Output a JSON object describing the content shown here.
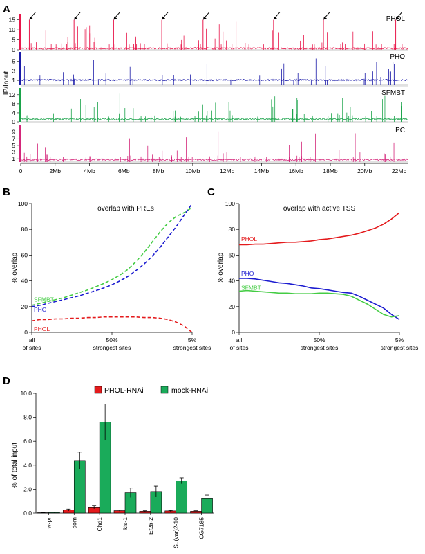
{
  "panel_labels": {
    "A": "A",
    "B": "B",
    "C": "C",
    "D": "D"
  },
  "colors": {
    "phol": "#e8174b",
    "pho": "#1a1aa8",
    "sfmbt": "#1aa34a",
    "pc": "#d4267a",
    "red_line": "#e41a1c",
    "blue_line": "#1c1cd0",
    "green_line": "#44cc44",
    "bar_red": "#e41a1c",
    "bar_green": "#1aab5a"
  },
  "chart_data": [
    {
      "id": "A",
      "type": "area",
      "ylabel": "IP/Input",
      "x_ticks": [
        "0",
        "2Mb",
        "4Mb",
        "6Mb",
        "8Mb",
        "10Mb",
        "12Mb",
        "14Mb",
        "16Mb",
        "18Mb",
        "20Mb",
        "22Mb"
      ],
      "xlim": [
        0,
        22.5
      ],
      "tracks": [
        {
          "name": "PHOL",
          "y_ticks": [
            "15",
            "10",
            "5",
            "0"
          ],
          "ylim": [
            0,
            18
          ],
          "arrows_at_mb": [
            0.5,
            3.1,
            5.4,
            8.2,
            10.6,
            14.7,
            17.6,
            21.8
          ]
        },
        {
          "name": "PHO",
          "y_ticks": [
            "5",
            "3",
            "1"
          ],
          "ylim": [
            0,
            7
          ]
        },
        {
          "name": "SFMBT",
          "y_ticks": [
            "12",
            "8",
            "4",
            "0"
          ],
          "ylim": [
            0,
            15
          ]
        },
        {
          "name": "PC",
          "y_ticks": [
            "9",
            "7",
            "5",
            "3",
            "1"
          ],
          "ylim": [
            0,
            11
          ]
        }
      ]
    },
    {
      "id": "B",
      "type": "line",
      "title": "overlap with PREs",
      "ylabel": "% overlap",
      "ylim": [
        0,
        100
      ],
      "y_ticks": [
        0,
        20,
        40,
        60,
        80,
        100
      ],
      "x_tick_labels": [
        [
          "all",
          "of sites"
        ],
        [
          "50%",
          "strongest sites"
        ],
        [
          "5%",
          "strongest sites"
        ]
      ],
      "x": [
        0,
        5,
        10,
        15,
        20,
        25,
        30,
        35,
        40,
        45,
        50,
        55,
        60,
        65,
        70,
        75,
        80,
        85,
        90,
        95,
        100
      ],
      "series": [
        {
          "name": "SFMBT",
          "values": [
            21,
            22.5,
            24,
            25.5,
            27,
            29,
            31,
            33,
            35.5,
            38,
            41,
            44.5,
            49,
            55,
            62,
            70,
            78,
            85,
            90,
            93,
            97
          ]
        },
        {
          "name": "PHO",
          "values": [
            20,
            21,
            22.5,
            24,
            25.5,
            27,
            28.5,
            30.5,
            32.5,
            34.5,
            37,
            40,
            43.5,
            48,
            53,
            59,
            66,
            74,
            82,
            91,
            100
          ]
        },
        {
          "name": "PHOL",
          "values": [
            9,
            10,
            10,
            10.5,
            10.5,
            11,
            11,
            11.5,
            11.5,
            12,
            12,
            12,
            12,
            12,
            11.5,
            11.5,
            11,
            10,
            8,
            5,
            0
          ]
        }
      ]
    },
    {
      "id": "C",
      "type": "line",
      "title": "overlap with active TSS",
      "ylabel": "% overlap",
      "ylim": [
        0,
        100
      ],
      "y_ticks": [
        0,
        20,
        40,
        60,
        80,
        100
      ],
      "x_tick_labels": [
        [
          "all",
          "of sites"
        ],
        [
          "50%",
          "strongest sites"
        ],
        [
          "5%",
          "strongest sites"
        ]
      ],
      "x": [
        0,
        5,
        10,
        15,
        20,
        25,
        30,
        35,
        40,
        45,
        50,
        55,
        60,
        65,
        70,
        75,
        80,
        85,
        90,
        95,
        100
      ],
      "series": [
        {
          "name": "PHOL",
          "values": [
            68,
            68,
            68.5,
            68.5,
            69,
            69.5,
            70,
            70,
            70.5,
            71,
            72,
            72.5,
            73.5,
            74.5,
            75.5,
            77,
            79,
            81,
            84,
            88,
            93
          ]
        },
        {
          "name": "PHO",
          "values": [
            42,
            42,
            41.5,
            40.5,
            39.5,
            38.5,
            38,
            37,
            36,
            34.5,
            34,
            33,
            32,
            31,
            30.5,
            28,
            25,
            22,
            19,
            14,
            10
          ]
        },
        {
          "name": "SFMBT",
          "values": [
            32,
            32.5,
            32,
            31.5,
            31,
            30.5,
            30.5,
            30,
            30,
            30,
            30.5,
            30.5,
            30,
            29.5,
            28,
            25,
            22,
            18,
            14,
            12,
            13
          ]
        }
      ]
    },
    {
      "id": "D",
      "type": "bar",
      "ylabel": "% of total input",
      "ylim": [
        0,
        10
      ],
      "y_tick_labels": [
        "0.0",
        "2.0",
        "4.0",
        "6.0",
        "8.0",
        "10.0"
      ],
      "categories": [
        "w-pr",
        "dom",
        "Chd1",
        "kis-1",
        "Ef2b-2",
        "Su(var)2-10",
        "CG7185"
      ],
      "series": [
        {
          "name": "PHOL-RNAi",
          "values": [
            0.03,
            0.25,
            0.5,
            0.2,
            0.15,
            0.18,
            0.15
          ],
          "errors": [
            0.02,
            0.08,
            0.15,
            0.05,
            0.04,
            0.05,
            0.04
          ]
        },
        {
          "name": "mock-RNAi",
          "values": [
            0.05,
            4.4,
            7.6,
            1.7,
            1.8,
            2.7,
            1.25
          ],
          "errors": [
            0.03,
            0.7,
            1.5,
            0.4,
            0.45,
            0.25,
            0.25
          ]
        }
      ]
    }
  ]
}
